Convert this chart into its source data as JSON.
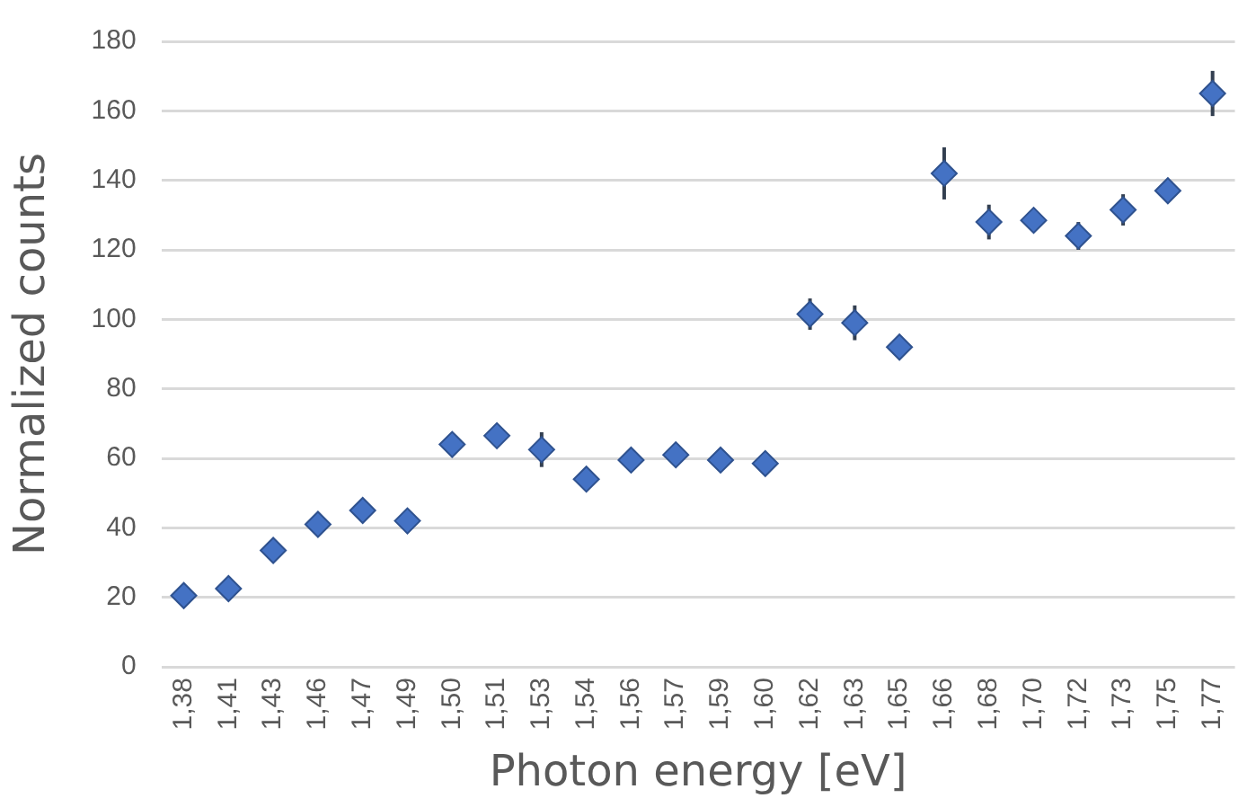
{
  "chart_data": {
    "type": "scatter",
    "xlabel": "Photon energy [eV]",
    "ylabel": "Normalized counts",
    "categories": [
      "1,38",
      "1,41",
      "1,43",
      "1,46",
      "1,47",
      "1,49",
      "1,50",
      "1,51",
      "1,53",
      "1,54",
      "1,56",
      "1,57",
      "1,59",
      "1,60",
      "1,62",
      "1,63",
      "1,65",
      "1,66",
      "1,68",
      "1,70",
      "1,72",
      "1,73",
      "1,75",
      "1,77"
    ],
    "values": [
      20.5,
      22.5,
      33.5,
      41,
      45,
      42,
      64,
      66.5,
      62.5,
      54,
      59.5,
      61,
      59.5,
      58.5,
      101.5,
      99,
      92,
      142,
      128,
      128.5,
      124,
      131.5,
      137,
      165
    ],
    "errors": [
      null,
      null,
      null,
      null,
      null,
      null,
      null,
      null,
      5,
      null,
      null,
      null,
      null,
      null,
      4.5,
      5,
      3,
      7.5,
      5,
      null,
      4,
      4.5,
      null,
      6.5
    ],
    "color": "#4472c4",
    "marker": "diamond",
    "grid": "y",
    "legend": false,
    "ylim": [
      0,
      180
    ],
    "yticks": [
      0,
      20,
      40,
      60,
      80,
      100,
      120,
      140,
      160,
      180
    ]
  }
}
